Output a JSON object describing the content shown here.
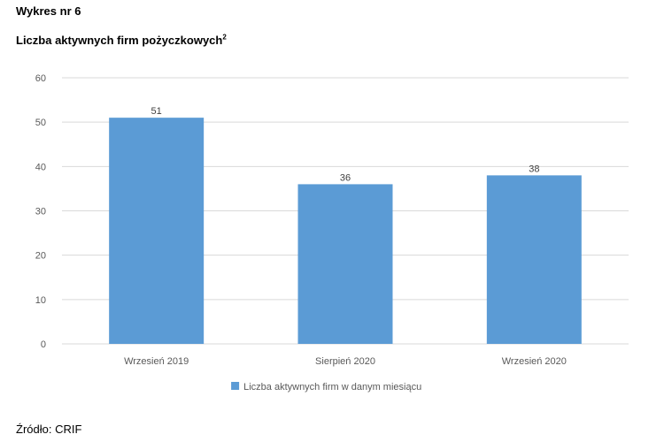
{
  "header_label": "Wykres nr 6",
  "title_main": "Liczba aktywnych firm pożyczkowych",
  "title_superscript": "2",
  "source": "Źródło: CRIF",
  "colors": {
    "bar": "#5b9bd5",
    "grid": "#d9d9d9",
    "axis_text": "#595959",
    "label_text": "#404040"
  },
  "chart_data": {
    "type": "bar",
    "categories": [
      "Wrzesień 2019",
      "Sierpień 2020",
      "Wrzesień 2020"
    ],
    "series": [
      {
        "name": "Liczba aktywnych firm w danym miesiącu",
        "values": [
          51,
          36,
          38
        ]
      }
    ],
    "ylim": [
      0,
      60
    ],
    "yticks": [
      0,
      10,
      20,
      30,
      40,
      50,
      60
    ],
    "grid": true,
    "data_labels": true,
    "legend": "bottom"
  }
}
